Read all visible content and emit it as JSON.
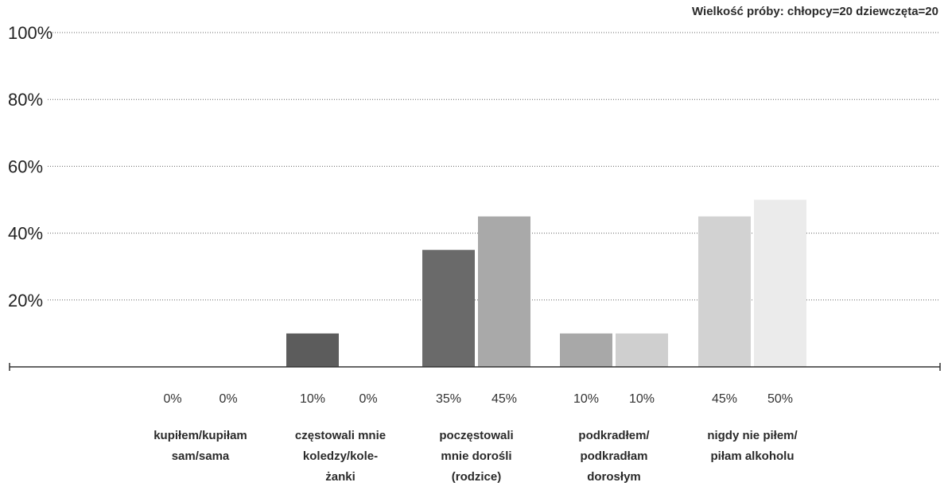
{
  "chart_data": {
    "type": "bar",
    "annotation": "Wielkość próby: chłopcy=20 dziewczęta=20",
    "y_ticks": [
      "20%",
      "40%",
      "60%",
      "80%",
      "100%"
    ],
    "ylim": [
      0,
      100
    ],
    "grid": true,
    "categories": [
      {
        "lines": [
          "kupiłem/kupiłam",
          "sam/sama"
        ]
      },
      {
        "lines": [
          "częstowali mnie",
          "koledzy/kole-",
          "żanki"
        ]
      },
      {
        "lines": [
          "poczęstowali",
          "mnie dorośli",
          "(rodzice)"
        ]
      },
      {
        "lines": [
          "podkradłem/",
          "podkradłam",
          "dorosłym"
        ]
      },
      {
        "lines": [
          "nigdy nie piłem/",
          "piłam alkoholu"
        ]
      }
    ],
    "series": [
      {
        "values": [
          0,
          10,
          35,
          10,
          45
        ],
        "labels": [
          "0%",
          "10%",
          "35%",
          "10%",
          "45%"
        ]
      },
      {
        "values": [
          0,
          0,
          45,
          10,
          50
        ],
        "labels": [
          "0%",
          "0%",
          "45%",
          "10%",
          "50%"
        ]
      }
    ],
    "bar_colors": [
      [
        "#5c5c5c",
        "#5c5c5c"
      ],
      [
        "#5c5c5c",
        "#8a8a8a"
      ],
      [
        "#6a6a6a",
        "#a9a9a9"
      ],
      [
        "#a8a8a8",
        "#cfcfcf"
      ],
      [
        "#d2d2d2",
        "#ebebeb"
      ]
    ]
  }
}
